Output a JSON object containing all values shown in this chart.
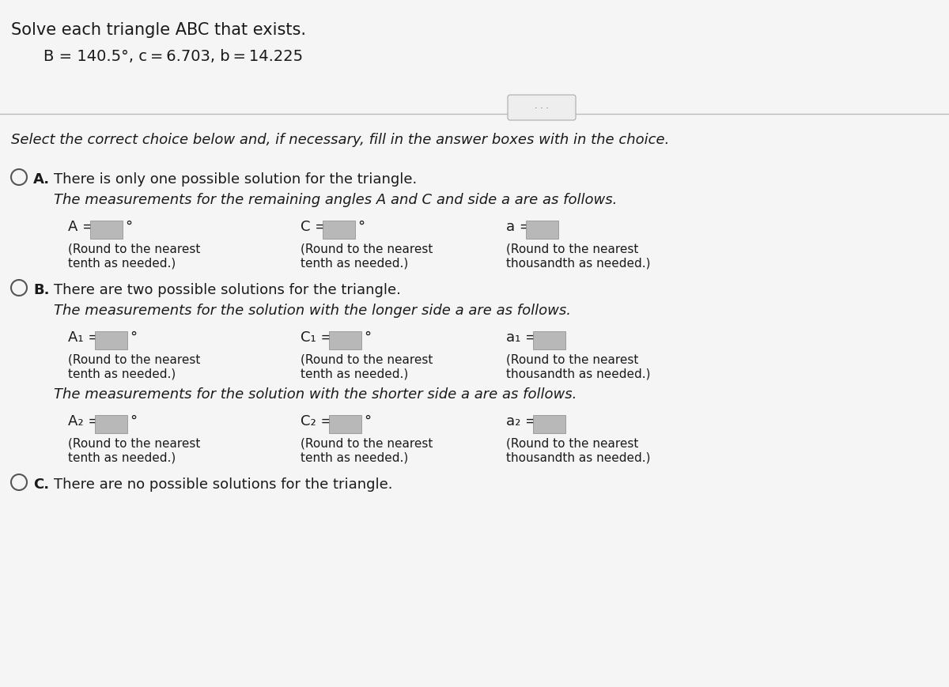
{
  "title_line1": "Solve each triangle ABC that exists.",
  "title_line2": "B = 140.5°, c = 6.703, b = 14.225",
  "select_text": "Select the correct choice below and, if necessary, fill in the answer boxes with in the choice.",
  "option_A_label": "A.",
  "option_A_line1": "There is only one possible solution for the triangle.",
  "option_A_line2": "The measurements for the remaining angles A and C and side a are as follows.",
  "option_B_label": "B.",
  "option_B_line1": "There are two possible solutions for the triangle.",
  "option_B_line2": "The measurements for the solution with the longer side a are as follows.",
  "option_B_shorter_text": "The measurements for the solution with the shorter side a are as follows.",
  "option_C_label": "C.",
  "option_C_line1": "There are no possible solutions for the triangle.",
  "bg_color": "#e8e8e8",
  "white_bg": "#f5f5f5",
  "text_color": "#1a1a1a",
  "box_color": "#c0c0c0",
  "dots_button_color": "#eeeeee",
  "font_size_title": 15,
  "font_size_subtitle": 14,
  "font_size_select": 13,
  "font_size_option": 13,
  "font_size_small": 11
}
